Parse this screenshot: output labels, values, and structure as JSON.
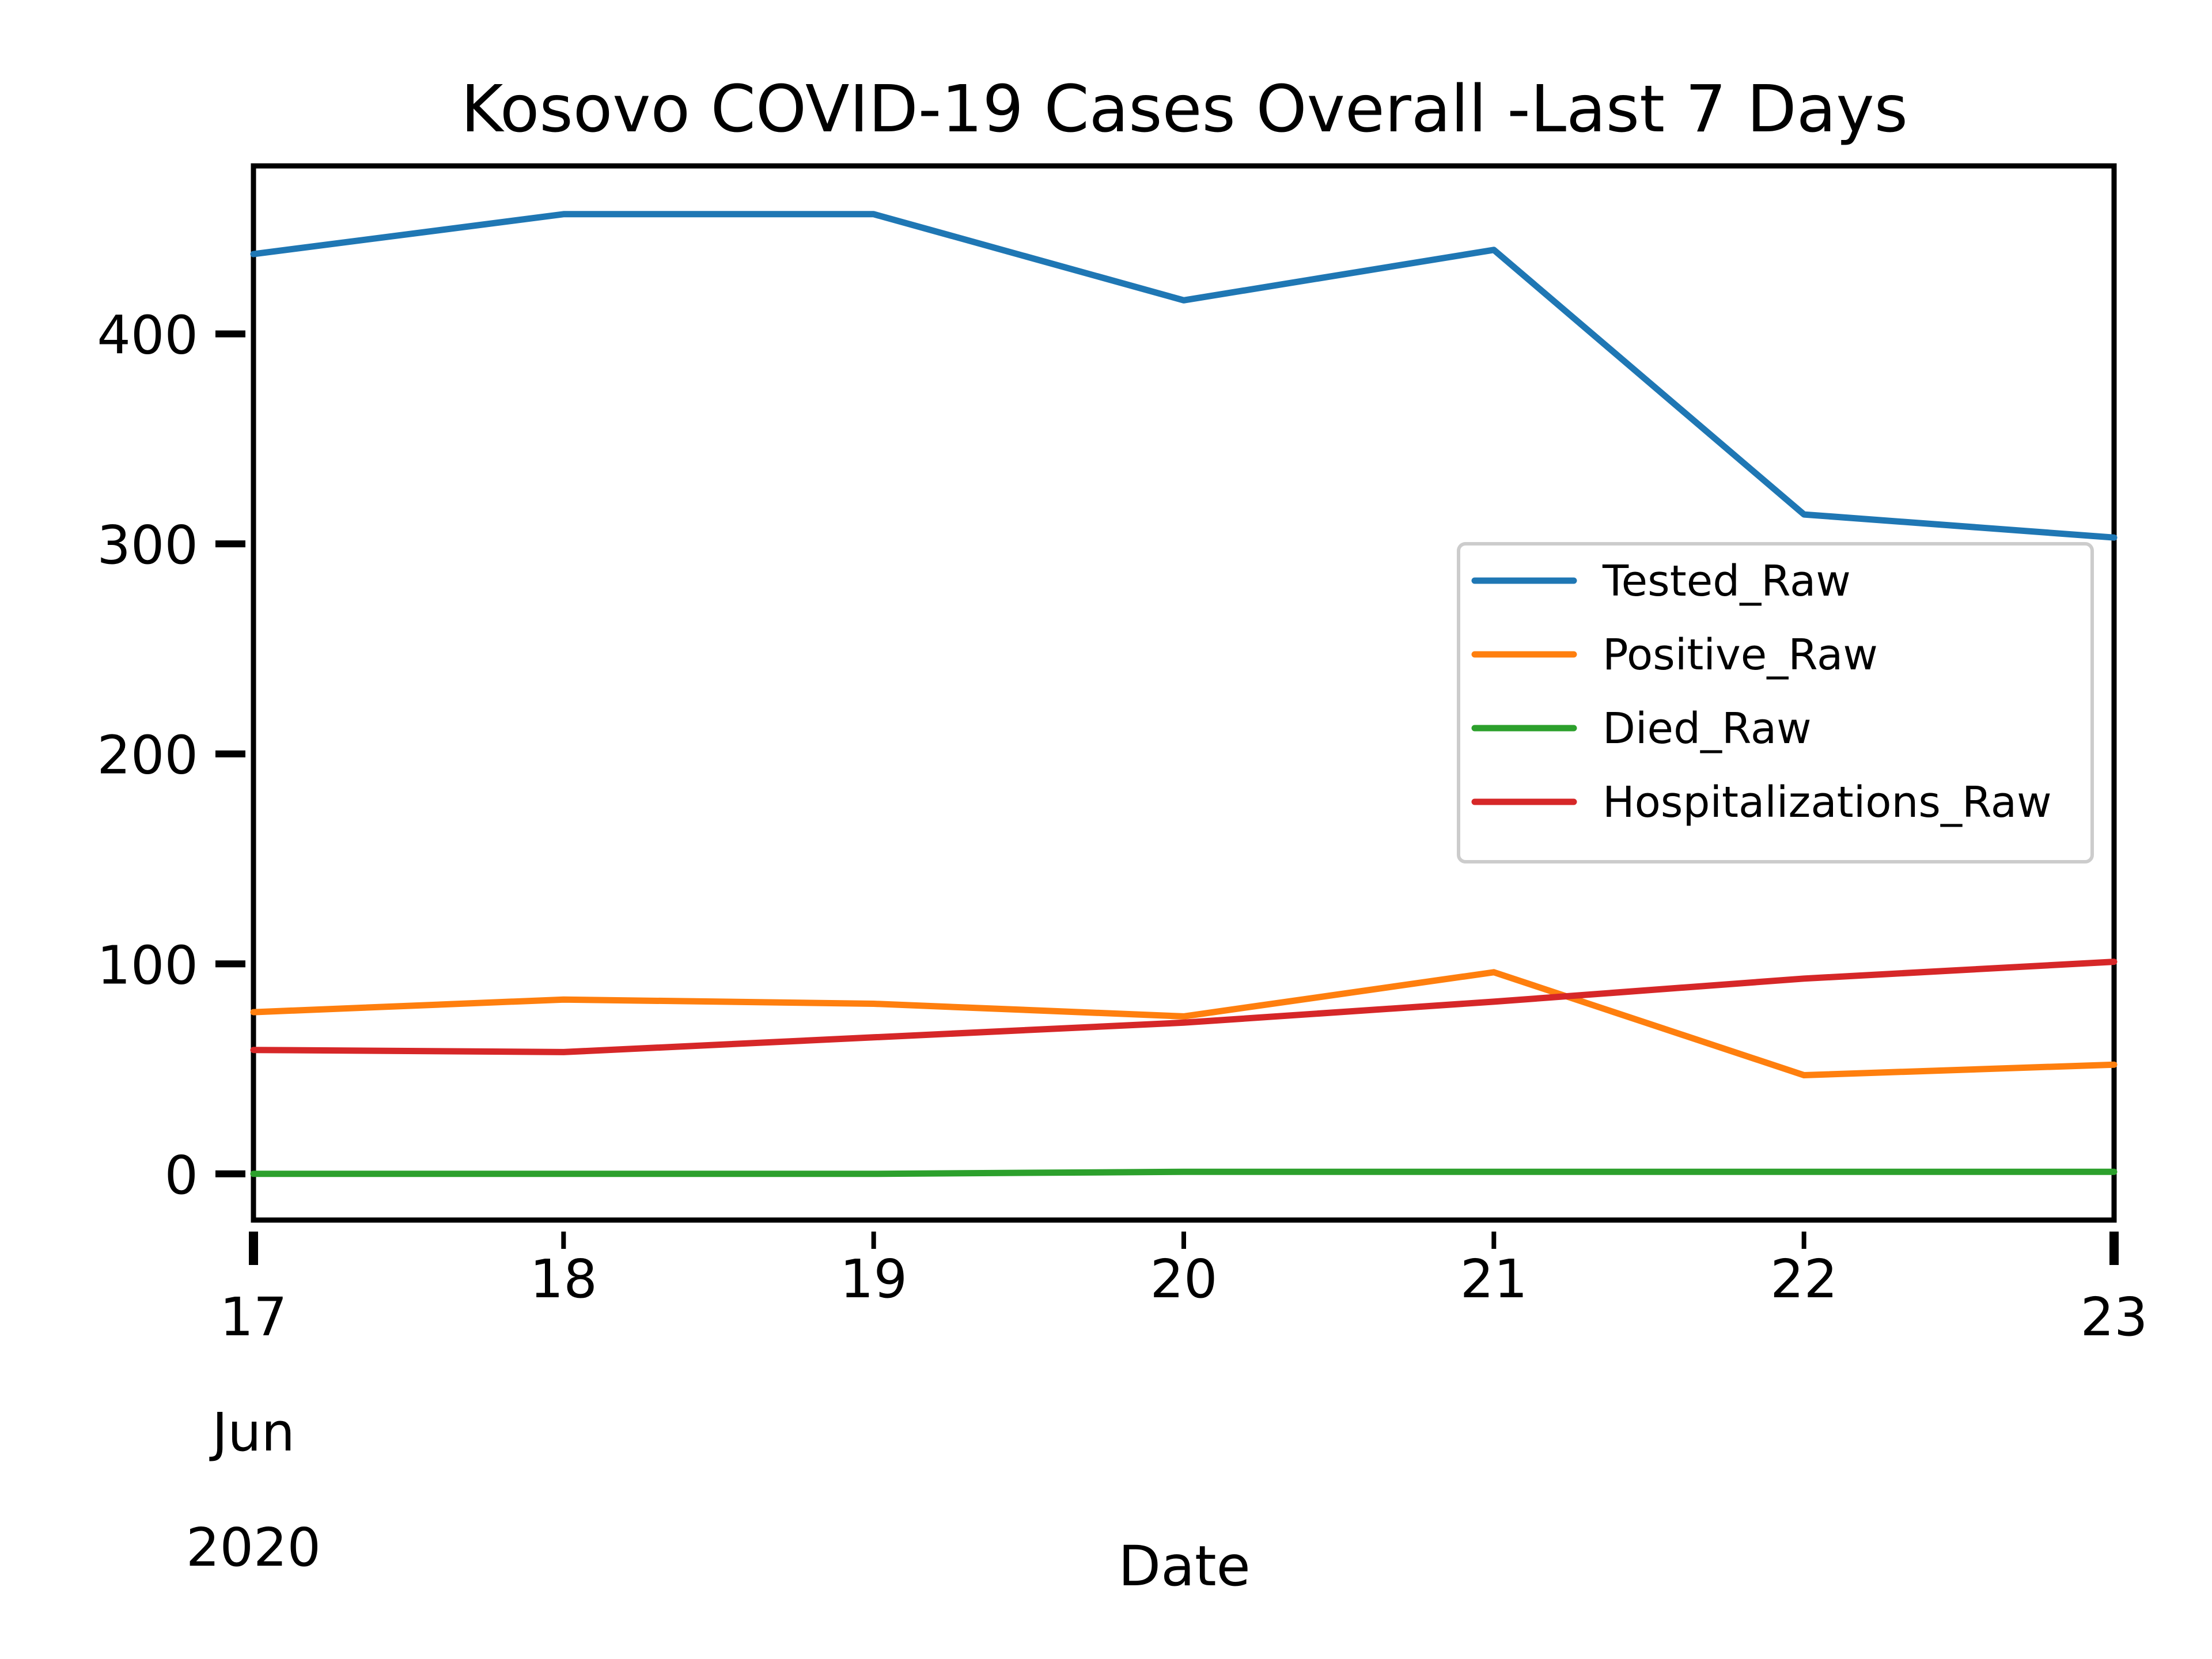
{
  "chart_data": {
    "type": "line",
    "title": "Kosovo COVID-19 Cases Overall -Last 7 Days",
    "xlabel": "Date",
    "ylabel": "",
    "x_ticks": [
      {
        "value": "2020-06-17",
        "lines": [
          "17",
          "Jun",
          "2020"
        ]
      },
      {
        "value": "2020-06-18",
        "lines": [
          "18"
        ]
      },
      {
        "value": "2020-06-19",
        "lines": [
          "19"
        ]
      },
      {
        "value": "2020-06-20",
        "lines": [
          "20"
        ]
      },
      {
        "value": "2020-06-21",
        "lines": [
          "21"
        ]
      },
      {
        "value": "2020-06-22",
        "lines": [
          "22"
        ]
      },
      {
        "value": "2020-06-23",
        "lines": [
          "23"
        ]
      }
    ],
    "x": [
      "2020-06-17",
      "2020-06-18",
      "2020-06-19",
      "2020-06-20",
      "2020-06-21",
      "2020-06-22",
      "2020-06-23"
    ],
    "xlim": [
      "2020-06-17",
      "2020-06-23"
    ],
    "yticks": [
      0,
      100,
      200,
      300,
      400
    ],
    "ylim": [
      -22,
      480
    ],
    "grid": false,
    "legend": "center-right",
    "series": [
      {
        "name": "Tested_Raw",
        "color": "#1f77b4",
        "values": [
          438,
          457,
          457,
          416,
          440,
          314,
          303
        ]
      },
      {
        "name": "Positive_Raw",
        "color": "#ff7f0e",
        "values": [
          77,
          83,
          81,
          75,
          96,
          47,
          52
        ]
      },
      {
        "name": "Died_Raw",
        "color": "#2ca02c",
        "values": [
          0,
          0,
          0,
          1,
          1,
          1,
          1
        ]
      },
      {
        "name": "Hospitalizations_Raw",
        "color": "#d62728",
        "values": [
          59,
          58,
          65,
          72,
          82,
          93,
          101
        ]
      }
    ]
  }
}
